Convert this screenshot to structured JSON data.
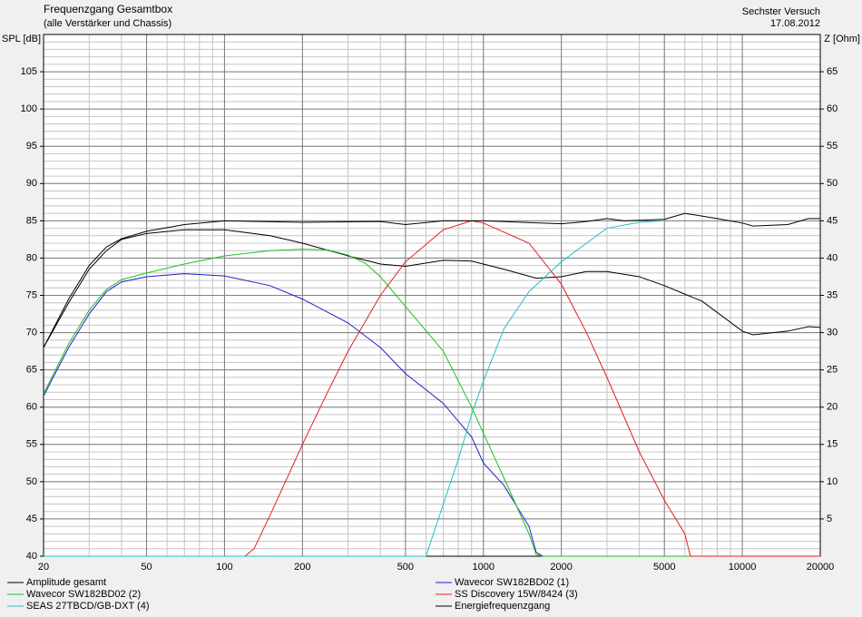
{
  "chart_data": {
    "type": "line",
    "title": "Frequenzgang Gesamtbox",
    "subtitle": "(alle Verstärker und Chassis)",
    "annotations": [
      "Sechster Versuch",
      "17.08.2012"
    ],
    "ylabel": "SPL [dB]",
    "y2label": "Z [Ohm]",
    "xscale": "log",
    "grid": true,
    "minor_grid": true,
    "legend": "bottom",
    "xlim": [
      20,
      20000
    ],
    "xticks": [
      20,
      50,
      100,
      200,
      500,
      1000,
      2000,
      5000,
      10000,
      20000
    ],
    "ylim": [
      40,
      110
    ],
    "yticks": [
      40,
      45,
      50,
      55,
      60,
      65,
      70,
      75,
      80,
      85,
      90,
      95,
      100,
      105
    ],
    "y2lim": [
      0,
      70
    ],
    "y2ticks": [
      5,
      10,
      15,
      20,
      25,
      30,
      35,
      40,
      45,
      50,
      55,
      60,
      65
    ],
    "series": [
      {
        "name": "Amplitude gesamt",
        "color": "#000000",
        "x": [
          20,
          25,
          30,
          35,
          40,
          50,
          70,
          100,
          150,
          200,
          300,
          400,
          500,
          700,
          900,
          1200,
          1600,
          2000,
          2500,
          3000,
          4000,
          5000,
          7000,
          10000,
          11000,
          15000,
          18000,
          20000
        ],
        "values": [
          68,
          74,
          78.5,
          81,
          82.5,
          83.3,
          83.8,
          83.8,
          83,
          82,
          80.3,
          79.2,
          78.9,
          79.7,
          79.6,
          78.5,
          77.3,
          77.5,
          78.2,
          78.2,
          77.5,
          76.3,
          74.2,
          70.2,
          69.7,
          70.2,
          70.8,
          70.7
        ]
      },
      {
        "name": "Wavecor SW182BD02 (1)",
        "color": "#2020c8",
        "x": [
          20,
          25,
          30,
          35,
          40,
          50,
          70,
          100,
          150,
          200,
          300,
          400,
          500,
          700,
          900,
          1000,
          1200,
          1500,
          1600,
          1700,
          20000
        ],
        "values": [
          61.5,
          68,
          72.5,
          75.5,
          76.8,
          77.5,
          77.9,
          77.6,
          76.3,
          74.5,
          71.3,
          68,
          64.5,
          60.5,
          56,
          52.5,
          49.5,
          44,
          40.5,
          40,
          40
        ]
      },
      {
        "name": "Wavecor SW182BD02 (2)",
        "color": "#20c020",
        "x": [
          20,
          25,
          30,
          35,
          40,
          50,
          70,
          100,
          150,
          200,
          250,
          300,
          350,
          400,
          500,
          700,
          900,
          1000,
          1200,
          1500,
          1600,
          1700,
          20000
        ],
        "values": [
          61.8,
          68.5,
          73,
          75.8,
          77.1,
          78,
          79.2,
          80.3,
          81,
          81.2,
          81.1,
          80.4,
          79.3,
          77.5,
          73.5,
          67.5,
          60,
          56.5,
          50.5,
          43,
          40.2,
          40,
          40
        ]
      },
      {
        "name": "SS Discovery 15W/8424 (3)",
        "color": "#e02020",
        "x": [
          20,
          120,
          130,
          150,
          200,
          250,
          300,
          400,
          500,
          700,
          900,
          1000,
          1500,
          2000,
          2500,
          3000,
          4000,
          5000,
          6000,
          6300,
          20000
        ],
        "values": [
          40,
          40,
          41,
          45.5,
          55,
          62,
          67.5,
          75,
          79.5,
          83.8,
          85,
          84.7,
          82,
          76.5,
          70,
          64,
          54,
          47.5,
          43,
          40,
          40
        ]
      },
      {
        "name": "SEAS 27TBCD/GB-DXT (4)",
        "color": "#20c0c8",
        "x": [
          20,
          600,
          700,
          800,
          900,
          1000,
          1200,
          1500,
          2000,
          2500,
          3000,
          4000,
          5000
        ],
        "values": [
          40,
          40,
          47,
          53,
          59,
          63.5,
          70.5,
          75.5,
          79.5,
          82,
          84,
          84.8,
          85
        ]
      },
      {
        "name": "Energiefrequenzgang",
        "color": "#000000",
        "x": [
          20,
          25,
          30,
          35,
          40,
          50,
          70,
          100,
          200,
          400,
          500,
          700,
          1000,
          2000,
          2500,
          3000,
          3500,
          5000,
          6000,
          8000,
          10000,
          11000,
          15000,
          18000,
          20000
        ],
        "values": [
          68,
          74.5,
          79,
          81.5,
          82.6,
          83.6,
          84.5,
          85,
          84.8,
          84.9,
          84.5,
          85,
          85,
          84.6,
          84.9,
          85.3,
          85,
          85.2,
          86,
          85.3,
          84.7,
          84.3,
          84.5,
          85.3,
          85.3
        ]
      }
    ]
  }
}
